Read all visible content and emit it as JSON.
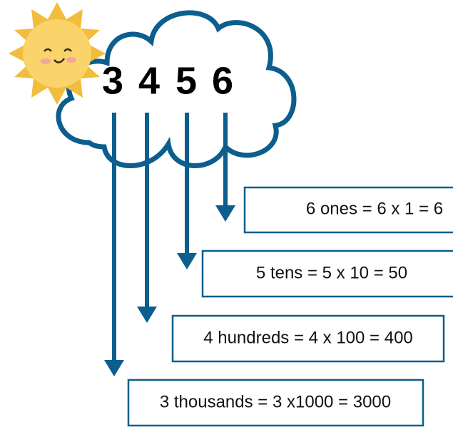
{
  "digits": [
    "3",
    "4",
    "5",
    "6"
  ],
  "boxes": [
    "6 ones = 6 x 1 = 6",
    "5 tens = 5 x 10 = 50",
    "4 hundreds = 4 x 100 = 400",
    "3 thousands = 3 x1000 = 3000"
  ]
}
